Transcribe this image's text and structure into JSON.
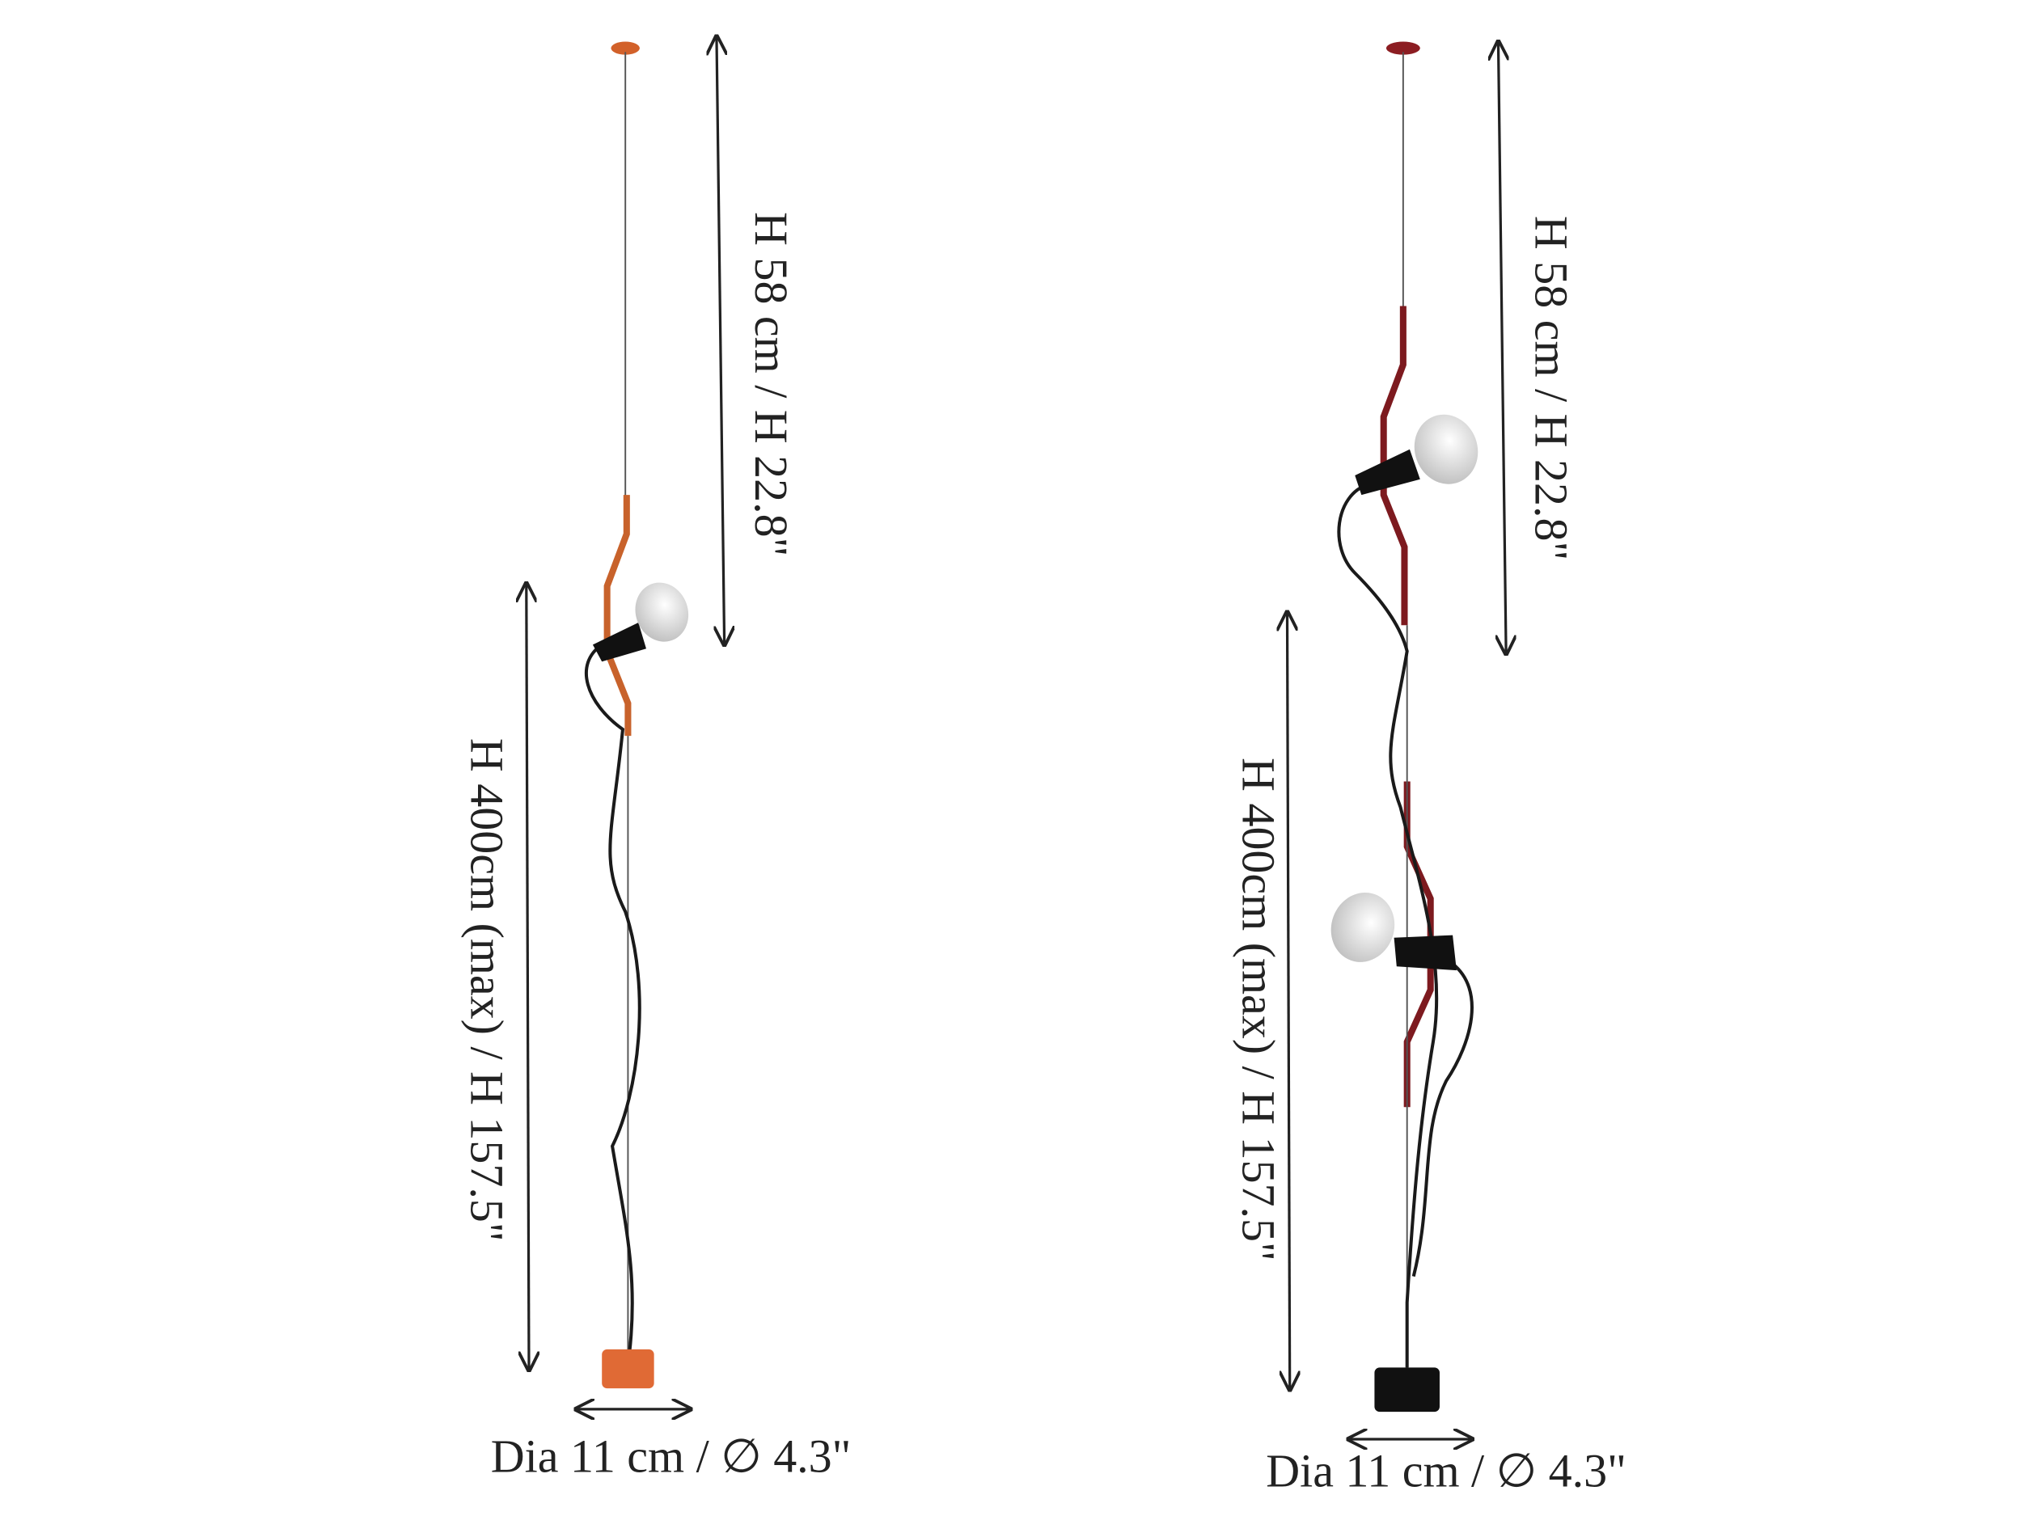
{
  "lamps": [
    {
      "top_dimension": "H 58 cm / H 22.8\"",
      "height_dimension": "H 400cm (max) / H  157.5\"",
      "diameter": "Dia 11 cm / ∅ 4.3\""
    },
    {
      "top_dimension": "H 58 cm / H 22.8\"",
      "height_dimension": "H 400cm (max) / H  157.5\"",
      "diameter": "Dia 11 cm / ∅ 4.3\""
    }
  ]
}
